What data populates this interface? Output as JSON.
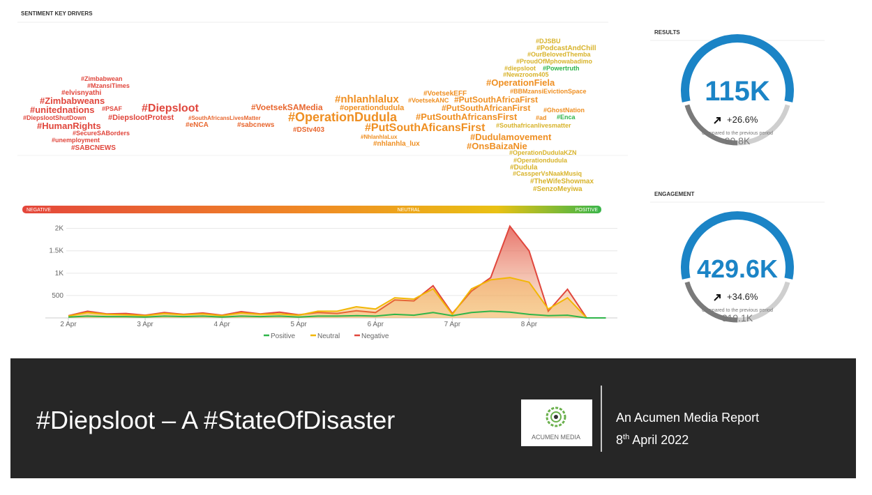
{
  "header": {
    "title": "SENTIMENT KEY DRIVERS"
  },
  "word_cloud": {
    "words": [
      "#Zimbabwean",
      "#MzansiTimes",
      "#elvisnyathi",
      "#Zimbabweans",
      "#unitednations",
      "#PSAF",
      "#DiepslootShutDown",
      "#DiepslootProtest",
      "#HumanRights",
      "#SecureSABorders",
      "#unemployment",
      "#SABCNEWS",
      "#Diepsloot",
      "#SouthAfricansLivesMatter",
      "#eNCA",
      "#VoetsekSAMedia",
      "#sabcnews",
      "#OperationDudula",
      "#DStv403",
      "#nhlanhlalux",
      "#operationdudula",
      "#PutSouthAficansFirst",
      "#NhlanhlaLux",
      "#nhlanhla_lux",
      "#VoetsekEFF",
      "#VoetsekANC",
      "#PutSouthAfricaFirst",
      "#PutSouthAfricanFirst",
      "#PutSouthAfricansFirst",
      "#ad",
      "#Dudulamovement",
      "#OnsBaizaNie",
      "#OperationFiela",
      "#BBMzansiEvictionSpace",
      "#GhostNation",
      "#DJSBU",
      "#PodcastAndChill",
      "#OurBelovedThemba",
      "#ProudOfMphowabadimo",
      "#diepsloot",
      "#Powertruth",
      "#Newzroom405",
      "#Enca",
      "#Southafricanlivesmatter",
      "#OperationDudulaKZN",
      "#Operationdudula",
      "#Dudula",
      "#CassperVsNaakMusiq",
      "#TheWifeShowmax",
      "#SenzoMeyiwa"
    ]
  },
  "sentiment_scale": {
    "negative": "NEGATIVE",
    "neutral": "NEUTRAL",
    "positive": "POSITIVE"
  },
  "chart_data": {
    "type": "area",
    "x": [
      0,
      0.25,
      0.5,
      0.75,
      1,
      1.25,
      1.5,
      1.75,
      2,
      2.25,
      2.5,
      2.75,
      3,
      3.25,
      3.5,
      3.75,
      4,
      4.25,
      4.5,
      4.75,
      5,
      5.25,
      5.5,
      5.75,
      6,
      6.25,
      6.5,
      6.75,
      7
    ],
    "series": [
      {
        "name": "Positive",
        "color": "#2fb54a",
        "values": [
          20,
          40,
          30,
          30,
          20,
          40,
          30,
          40,
          20,
          40,
          30,
          40,
          20,
          40,
          40,
          50,
          40,
          80,
          60,
          120,
          50,
          120,
          150,
          130,
          80,
          50,
          60,
          0,
          0
        ]
      },
      {
        "name": "Neutral",
        "color": "#f2b705",
        "values": [
          40,
          120,
          80,
          70,
          50,
          100,
          70,
          90,
          50,
          110,
          80,
          90,
          60,
          150,
          150,
          250,
          200,
          450,
          420,
          650,
          80,
          650,
          850,
          900,
          800,
          200,
          450,
          0,
          0
        ]
      },
      {
        "name": "Negative",
        "color": "#e0463c",
        "values": [
          50,
          150,
          90,
          100,
          60,
          120,
          80,
          110,
          60,
          140,
          90,
          130,
          70,
          120,
          100,
          160,
          120,
          400,
          380,
          720,
          100,
          600,
          900,
          2050,
          1500,
          150,
          640,
          0,
          0
        ]
      }
    ],
    "xlim": [
      -0.3,
      7.15
    ],
    "xticks": [
      {
        "value": 0,
        "label": "2 Apr"
      },
      {
        "value": 1,
        "label": "3 Apr"
      },
      {
        "value": 2,
        "label": "4 Apr"
      },
      {
        "value": 3,
        "label": "5 Apr"
      },
      {
        "value": 4,
        "label": "6 Apr"
      },
      {
        "value": 5,
        "label": "7 Apr"
      },
      {
        "value": 6,
        "label": "8 Apr"
      }
    ],
    "ylim": [
      0,
      2150
    ],
    "yticks": [
      500,
      {
        "value": 1000,
        "label": "1K"
      },
      {
        "value": 1500,
        "label": "1.5K"
      },
      {
        "value": 2000,
        "label": "2K"
      }
    ],
    "grid": true
  },
  "results": {
    "title": "RESULTS",
    "value": "115K",
    "change": "+26.6%",
    "note": "Compared to the previous period",
    "previous": "90.8K"
  },
  "engagement": {
    "title": "ENGAGEMENT",
    "value": "429.6K",
    "change": "+34.6%",
    "note": "Compared to the previous period",
    "previous": "319.1K"
  },
  "footer": {
    "title": "#Diepsloot – A #StateOfDisaster",
    "logo": "ACUMEN MEDIA",
    "report": "An Acumen Media Report",
    "date": {
      "day": "8",
      "suffix": "th",
      "rest": "April 2022"
    }
  }
}
